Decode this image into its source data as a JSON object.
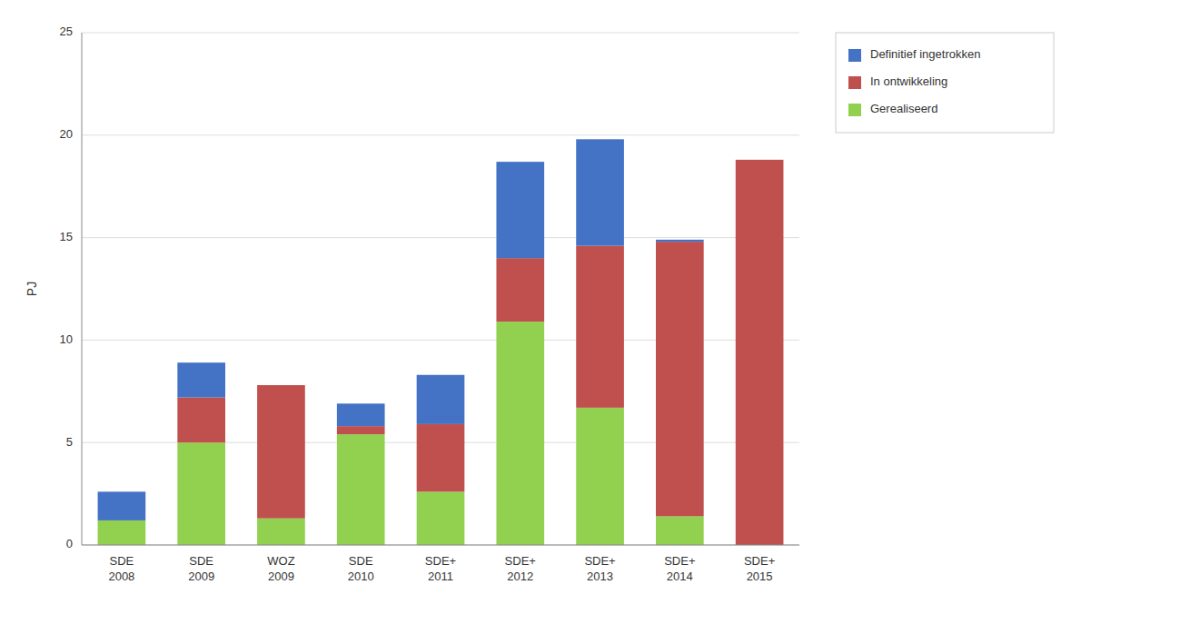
{
  "chart_data": {
    "type": "bar",
    "stacked": true,
    "y_label": "PJ",
    "categories": [
      "SDE\n2008",
      "SDE\n2009",
      "WOZ\n2009",
      "SDE\n2010",
      "SDE+\n2011",
      "SDE+\n2012",
      "SDE+\n2013",
      "SDE+\n2014",
      "SDE+\n2015"
    ],
    "series": [
      {
        "name": "Gerealiseerd",
        "color": "#92D050",
        "values": [
          1.2,
          5.0,
          1.3,
          5.4,
          2.6,
          10.9,
          6.7,
          1.4,
          0.0
        ]
      },
      {
        "name": "In ontwikkeling",
        "color": "#C0504D",
        "values": [
          0.0,
          2.2,
          6.5,
          0.4,
          3.3,
          3.1,
          7.9,
          13.4,
          18.8
        ]
      },
      {
        "name": "Definitief ingetrokken",
        "color": "#4472C4",
        "values": [
          1.4,
          1.7,
          0.0,
          1.1,
          2.4,
          4.7,
          5.2,
          0.1,
          0.0
        ]
      }
    ],
    "ylim": [
      0,
      25
    ],
    "yticks": [
      0,
      5,
      10,
      15,
      20,
      25
    ],
    "grid": true,
    "legend": "right"
  }
}
